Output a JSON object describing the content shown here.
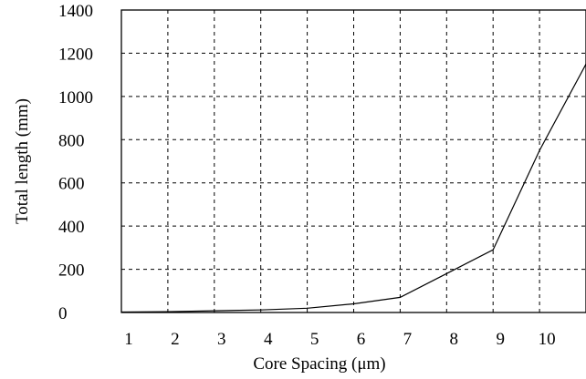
{
  "chart_data": {
    "type": "line",
    "title": "",
    "xlabel": "Core Spacing (μm)",
    "ylabel": "Total length (mm)",
    "xlim": [
      1,
      11
    ],
    "ylim": [
      0,
      1400
    ],
    "x_ticks": [
      1,
      2,
      3,
      4,
      5,
      6,
      7,
      8,
      9,
      10
    ],
    "x_tick_labels": [
      "1",
      "2",
      "3",
      "4",
      "5",
      "6",
      "7",
      "8",
      "9",
      "10"
    ],
    "y_ticks": [
      0,
      200,
      400,
      600,
      800,
      1000,
      1200,
      1400
    ],
    "y_tick_labels": [
      "0",
      "200",
      "400",
      "600",
      "800",
      "1000",
      "1200",
      "1400"
    ],
    "grid": true,
    "series": [
      {
        "x": [
          1,
          2,
          3,
          4,
          5,
          6,
          7,
          8,
          9,
          10,
          11
        ],
        "y": [
          2,
          4,
          8,
          12,
          20,
          40,
          70,
          180,
          290,
          750,
          1150
        ]
      }
    ]
  }
}
